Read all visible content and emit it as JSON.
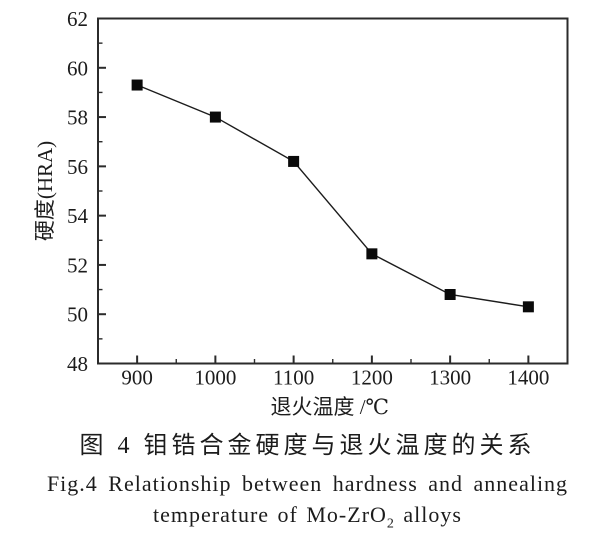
{
  "chart_data": {
    "type": "line",
    "x": [
      900,
      1000,
      1100,
      1200,
      1300,
      1400
    ],
    "y": [
      59.3,
      58.0,
      56.2,
      52.45,
      50.8,
      50.3
    ],
    "series_name": "hardness",
    "title": "",
    "xlabel": "退火温度 /℃",
    "ylabel": "硬度(HRA)",
    "xlim": [
      850,
      1450
    ],
    "ylim": [
      48,
      62
    ],
    "x_major_ticks": [
      900,
      1000,
      1100,
      1200,
      1300,
      1400
    ],
    "x_minor_step": 50,
    "y_major_ticks": [
      48,
      50,
      52,
      54,
      56,
      58,
      60,
      62
    ],
    "y_minor_step": 1,
    "grid": false,
    "legend": "none",
    "marker": "filled-square",
    "marker_size": 11,
    "colors": {
      "line": "#1c1c1c",
      "marker": "#0a0a0a",
      "axis": "#2b2b2b",
      "text": "#1c1c1c"
    }
  },
  "caption": {
    "line1": "图 4  钼锆合金硬度与退火温度的关系",
    "line2": "Fig.4  Relationship between hardness and annealing",
    "line3_prefix": "temperature of Mo-ZrO",
    "line3_sub": "2",
    "line3_suffix": " alloys"
  }
}
